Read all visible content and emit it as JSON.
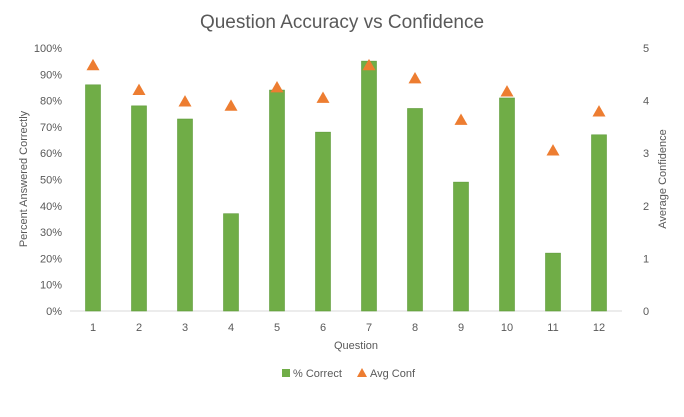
{
  "chart_data": {
    "type": "bar",
    "title": "Question Accuracy vs Confidence",
    "xlabel": "Question",
    "ylabel": "Percent Answered Correctly",
    "y2label": "Average Confidence",
    "categories": [
      "1",
      "2",
      "3",
      "4",
      "5",
      "6",
      "7",
      "8",
      "9",
      "10",
      "11",
      "12"
    ],
    "series": [
      {
        "name": "% Correct",
        "type": "bar",
        "axis": "left",
        "color": "#70ad47",
        "values": [
          86,
          78,
          73,
          37,
          84,
          68,
          95,
          77,
          49,
          81,
          22,
          67
        ]
      },
      {
        "name": "Avg Conf",
        "type": "scatter",
        "marker": "triangle",
        "axis": "right",
        "color": "#ed7d31",
        "values": [
          4.67,
          4.2,
          3.98,
          3.9,
          4.25,
          4.05,
          4.67,
          4.42,
          3.63,
          4.17,
          3.05,
          3.79
        ]
      }
    ],
    "ylim": [
      0,
      100
    ],
    "y2lim": [
      0,
      5
    ],
    "yticks": [
      "0%",
      "10%",
      "20%",
      "30%",
      "40%",
      "50%",
      "60%",
      "70%",
      "80%",
      "90%",
      "100%"
    ],
    "y2ticks": [
      "0",
      "1",
      "2",
      "3",
      "4",
      "5"
    ],
    "grid": false,
    "legend": "bottom"
  },
  "caption": ""
}
